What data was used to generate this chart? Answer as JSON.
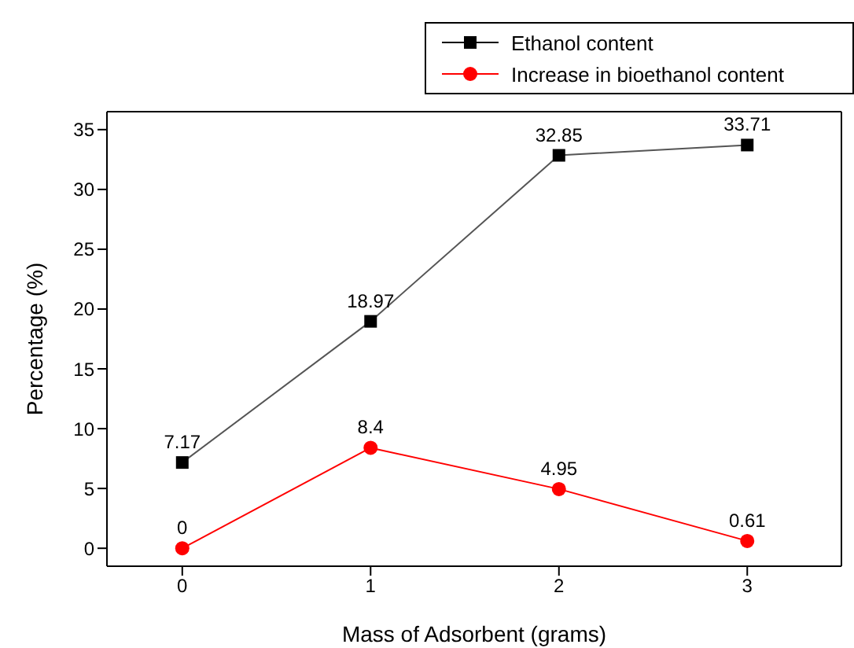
{
  "chart_data": {
    "type": "line",
    "xlabel": "Mass of Adsorbent (grams)",
    "ylabel": "Percentage (%)",
    "x": [
      0,
      1,
      2,
      3
    ],
    "xlim": [
      -0.4,
      3.5
    ],
    "xticks": [
      0,
      1,
      2,
      3
    ],
    "ylim": [
      -1.5,
      36.5
    ],
    "yticks": [
      0,
      5,
      10,
      15,
      20,
      25,
      30,
      35
    ],
    "series": [
      {
        "name": "Ethanol content",
        "color": "#000000",
        "values": [
          7.17,
          18.97,
          32.85,
          33.71
        ],
        "marker": "square"
      },
      {
        "name": "Increase in bioethanol content",
        "color": "#ff0000",
        "values": [
          0,
          8.4,
          4.95,
          0.61
        ],
        "marker": "circle"
      }
    ],
    "data_labels": true,
    "legend": "top right",
    "grid": false
  }
}
